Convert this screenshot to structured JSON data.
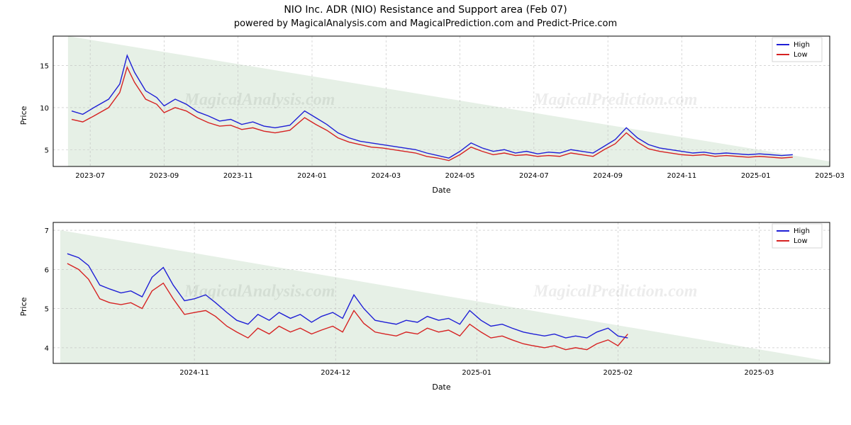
{
  "title": "NIO Inc. ADR (NIO) Resistance and Support area (Feb 07)",
  "subtitle": "powered by MagicalAnalysis.com and MagicalPrediction.com and Predict-Price.com",
  "watermarks": [
    "MagicalAnalysis.com",
    "MagicalPrediction.com"
  ],
  "legend": {
    "high": "High",
    "low": "Low"
  },
  "axis_labels": {
    "y": "Price",
    "x": "Date"
  },
  "colors": {
    "high": "#1f1fd6",
    "low": "#d62222",
    "support_fill": "#e6f0e6",
    "grid": "#bfbfbf",
    "background": "#ffffff",
    "text": "#000000"
  },
  "chart1": {
    "type": "line",
    "xlim": [
      0,
      21
    ],
    "ylim": [
      3,
      18.5
    ],
    "yticks": [
      5,
      10,
      15
    ],
    "xticks": [
      {
        "pos": 1,
        "label": "2023-07"
      },
      {
        "pos": 3,
        "label": "2023-09"
      },
      {
        "pos": 5,
        "label": "2023-11"
      },
      {
        "pos": 7,
        "label": "2024-01"
      },
      {
        "pos": 9,
        "label": "2024-03"
      },
      {
        "pos": 11,
        "label": "2024-05"
      },
      {
        "pos": 13,
        "label": "2024-07"
      },
      {
        "pos": 15,
        "label": "2024-09"
      },
      {
        "pos": 17,
        "label": "2024-11"
      },
      {
        "pos": 19,
        "label": "2025-01"
      },
      {
        "pos": 21,
        "label": "2025-03"
      }
    ],
    "support_poly": [
      [
        0.4,
        18.5
      ],
      [
        21,
        3.6
      ],
      [
        21,
        3.0
      ],
      [
        0.4,
        3.0
      ]
    ],
    "high": [
      [
        0.5,
        9.6
      ],
      [
        0.8,
        9.2
      ],
      [
        1.1,
        10.0
      ],
      [
        1.5,
        11.0
      ],
      [
        1.8,
        12.8
      ],
      [
        2.0,
        16.2
      ],
      [
        2.2,
        14.2
      ],
      [
        2.5,
        12.0
      ],
      [
        2.8,
        11.2
      ],
      [
        3.0,
        10.2
      ],
      [
        3.3,
        11.0
      ],
      [
        3.6,
        10.4
      ],
      [
        3.9,
        9.5
      ],
      [
        4.2,
        9.0
      ],
      [
        4.5,
        8.4
      ],
      [
        4.8,
        8.6
      ],
      [
        5.1,
        8.0
      ],
      [
        5.4,
        8.3
      ],
      [
        5.7,
        7.8
      ],
      [
        6.0,
        7.6
      ],
      [
        6.4,
        7.9
      ],
      [
        6.8,
        9.6
      ],
      [
        7.1,
        8.8
      ],
      [
        7.4,
        8.0
      ],
      [
        7.7,
        7.0
      ],
      [
        8.0,
        6.4
      ],
      [
        8.3,
        6.0
      ],
      [
        8.6,
        5.8
      ],
      [
        8.9,
        5.6
      ],
      [
        9.2,
        5.4
      ],
      [
        9.5,
        5.2
      ],
      [
        9.8,
        5.0
      ],
      [
        10.1,
        4.6
      ],
      [
        10.4,
        4.3
      ],
      [
        10.7,
        4.0
      ],
      [
        11.0,
        4.8
      ],
      [
        11.3,
        5.8
      ],
      [
        11.6,
        5.2
      ],
      [
        11.9,
        4.8
      ],
      [
        12.2,
        5.0
      ],
      [
        12.5,
        4.6
      ],
      [
        12.8,
        4.8
      ],
      [
        13.1,
        4.5
      ],
      [
        13.4,
        4.7
      ],
      [
        13.7,
        4.6
      ],
      [
        14.0,
        5.0
      ],
      [
        14.3,
        4.8
      ],
      [
        14.6,
        4.6
      ],
      [
        14.9,
        5.4
      ],
      [
        15.2,
        6.2
      ],
      [
        15.5,
        7.6
      ],
      [
        15.8,
        6.4
      ],
      [
        16.1,
        5.6
      ],
      [
        16.4,
        5.2
      ],
      [
        16.7,
        5.0
      ],
      [
        17.0,
        4.8
      ],
      [
        17.3,
        4.6
      ],
      [
        17.6,
        4.7
      ],
      [
        17.9,
        4.5
      ],
      [
        18.2,
        4.6
      ],
      [
        18.5,
        4.5
      ],
      [
        18.8,
        4.4
      ],
      [
        19.1,
        4.5
      ],
      [
        19.4,
        4.4
      ],
      [
        19.7,
        4.3
      ],
      [
        20.0,
        4.4
      ]
    ],
    "low": [
      [
        0.5,
        8.6
      ],
      [
        0.8,
        8.3
      ],
      [
        1.1,
        9.0
      ],
      [
        1.5,
        10.0
      ],
      [
        1.8,
        11.8
      ],
      [
        2.0,
        14.8
      ],
      [
        2.2,
        13.0
      ],
      [
        2.5,
        11.0
      ],
      [
        2.8,
        10.4
      ],
      [
        3.0,
        9.4
      ],
      [
        3.3,
        10.0
      ],
      [
        3.6,
        9.6
      ],
      [
        3.9,
        8.8
      ],
      [
        4.2,
        8.2
      ],
      [
        4.5,
        7.8
      ],
      [
        4.8,
        7.9
      ],
      [
        5.1,
        7.4
      ],
      [
        5.4,
        7.6
      ],
      [
        5.7,
        7.2
      ],
      [
        6.0,
        7.0
      ],
      [
        6.4,
        7.3
      ],
      [
        6.8,
        8.8
      ],
      [
        7.1,
        8.0
      ],
      [
        7.4,
        7.3
      ],
      [
        7.7,
        6.4
      ],
      [
        8.0,
        5.9
      ],
      [
        8.3,
        5.6
      ],
      [
        8.6,
        5.3
      ],
      [
        8.9,
        5.2
      ],
      [
        9.2,
        5.0
      ],
      [
        9.5,
        4.8
      ],
      [
        9.8,
        4.6
      ],
      [
        10.1,
        4.2
      ],
      [
        10.4,
        4.0
      ],
      [
        10.7,
        3.7
      ],
      [
        11.0,
        4.4
      ],
      [
        11.3,
        5.3
      ],
      [
        11.6,
        4.8
      ],
      [
        11.9,
        4.4
      ],
      [
        12.2,
        4.6
      ],
      [
        12.5,
        4.3
      ],
      [
        12.8,
        4.4
      ],
      [
        13.1,
        4.2
      ],
      [
        13.4,
        4.3
      ],
      [
        13.7,
        4.2
      ],
      [
        14.0,
        4.6
      ],
      [
        14.3,
        4.4
      ],
      [
        14.6,
        4.2
      ],
      [
        14.9,
        5.0
      ],
      [
        15.2,
        5.7
      ],
      [
        15.5,
        7.0
      ],
      [
        15.8,
        5.9
      ],
      [
        16.1,
        5.1
      ],
      [
        16.4,
        4.8
      ],
      [
        16.7,
        4.6
      ],
      [
        17.0,
        4.4
      ],
      [
        17.3,
        4.3
      ],
      [
        17.6,
        4.4
      ],
      [
        17.9,
        4.2
      ],
      [
        18.2,
        4.3
      ],
      [
        18.5,
        4.2
      ],
      [
        18.8,
        4.1
      ],
      [
        19.1,
        4.2
      ],
      [
        19.4,
        4.1
      ],
      [
        19.7,
        4.0
      ],
      [
        20.0,
        4.1
      ]
    ]
  },
  "chart2": {
    "type": "line",
    "xlim": [
      0,
      5.5
    ],
    "ylim": [
      3.6,
      7.2
    ],
    "yticks": [
      4,
      5,
      6,
      7
    ],
    "xticks": [
      {
        "pos": 1,
        "label": "2024-11"
      },
      {
        "pos": 2,
        "label": "2024-12"
      },
      {
        "pos": 3,
        "label": "2025-01"
      },
      {
        "pos": 4,
        "label": "2025-02"
      },
      {
        "pos": 5,
        "label": "2025-03"
      }
    ],
    "support_poly": [
      [
        0.05,
        7.0
      ],
      [
        5.5,
        3.65
      ],
      [
        5.5,
        3.6
      ],
      [
        0.05,
        3.6
      ]
    ],
    "high": [
      [
        0.1,
        6.4
      ],
      [
        0.18,
        6.3
      ],
      [
        0.25,
        6.1
      ],
      [
        0.33,
        5.6
      ],
      [
        0.4,
        5.5
      ],
      [
        0.48,
        5.4
      ],
      [
        0.55,
        5.45
      ],
      [
        0.63,
        5.3
      ],
      [
        0.7,
        5.8
      ],
      [
        0.78,
        6.05
      ],
      [
        0.85,
        5.6
      ],
      [
        0.93,
        5.2
      ],
      [
        1.0,
        5.25
      ],
      [
        1.08,
        5.35
      ],
      [
        1.15,
        5.15
      ],
      [
        1.23,
        4.9
      ],
      [
        1.3,
        4.7
      ],
      [
        1.38,
        4.6
      ],
      [
        1.45,
        4.85
      ],
      [
        1.53,
        4.7
      ],
      [
        1.6,
        4.9
      ],
      [
        1.68,
        4.75
      ],
      [
        1.75,
        4.85
      ],
      [
        1.83,
        4.65
      ],
      [
        1.9,
        4.8
      ],
      [
        1.98,
        4.9
      ],
      [
        2.05,
        4.75
      ],
      [
        2.13,
        5.35
      ],
      [
        2.2,
        5.0
      ],
      [
        2.28,
        4.7
      ],
      [
        2.35,
        4.65
      ],
      [
        2.43,
        4.6
      ],
      [
        2.5,
        4.7
      ],
      [
        2.58,
        4.65
      ],
      [
        2.65,
        4.8
      ],
      [
        2.73,
        4.7
      ],
      [
        2.8,
        4.75
      ],
      [
        2.88,
        4.6
      ],
      [
        2.95,
        4.95
      ],
      [
        3.03,
        4.7
      ],
      [
        3.1,
        4.55
      ],
      [
        3.18,
        4.6
      ],
      [
        3.25,
        4.5
      ],
      [
        3.33,
        4.4
      ],
      [
        3.4,
        4.35
      ],
      [
        3.48,
        4.3
      ],
      [
        3.55,
        4.35
      ],
      [
        3.63,
        4.25
      ],
      [
        3.7,
        4.3
      ],
      [
        3.78,
        4.25
      ],
      [
        3.85,
        4.4
      ],
      [
        3.93,
        4.5
      ],
      [
        4.0,
        4.3
      ],
      [
        4.07,
        4.25
      ]
    ],
    "low": [
      [
        0.1,
        6.15
      ],
      [
        0.18,
        6.0
      ],
      [
        0.25,
        5.75
      ],
      [
        0.33,
        5.25
      ],
      [
        0.4,
        5.15
      ],
      [
        0.48,
        5.1
      ],
      [
        0.55,
        5.15
      ],
      [
        0.63,
        5.0
      ],
      [
        0.7,
        5.45
      ],
      [
        0.78,
        5.65
      ],
      [
        0.85,
        5.25
      ],
      [
        0.93,
        4.85
      ],
      [
        1.0,
        4.9
      ],
      [
        1.08,
        4.95
      ],
      [
        1.15,
        4.8
      ],
      [
        1.23,
        4.55
      ],
      [
        1.3,
        4.4
      ],
      [
        1.38,
        4.25
      ],
      [
        1.45,
        4.5
      ],
      [
        1.53,
        4.35
      ],
      [
        1.6,
        4.55
      ],
      [
        1.68,
        4.4
      ],
      [
        1.75,
        4.5
      ],
      [
        1.83,
        4.35
      ],
      [
        1.9,
        4.45
      ],
      [
        1.98,
        4.55
      ],
      [
        2.05,
        4.4
      ],
      [
        2.13,
        4.95
      ],
      [
        2.2,
        4.62
      ],
      [
        2.28,
        4.4
      ],
      [
        2.35,
        4.35
      ],
      [
        2.43,
        4.3
      ],
      [
        2.5,
        4.4
      ],
      [
        2.58,
        4.35
      ],
      [
        2.65,
        4.5
      ],
      [
        2.73,
        4.4
      ],
      [
        2.8,
        4.45
      ],
      [
        2.88,
        4.3
      ],
      [
        2.95,
        4.6
      ],
      [
        3.03,
        4.4
      ],
      [
        3.1,
        4.25
      ],
      [
        3.18,
        4.3
      ],
      [
        3.25,
        4.2
      ],
      [
        3.33,
        4.1
      ],
      [
        3.4,
        4.05
      ],
      [
        3.48,
        4.0
      ],
      [
        3.55,
        4.05
      ],
      [
        3.63,
        3.95
      ],
      [
        3.7,
        4.0
      ],
      [
        3.78,
        3.95
      ],
      [
        3.85,
        4.1
      ],
      [
        3.93,
        4.2
      ],
      [
        4.0,
        4.05
      ],
      [
        4.07,
        4.35
      ]
    ]
  }
}
